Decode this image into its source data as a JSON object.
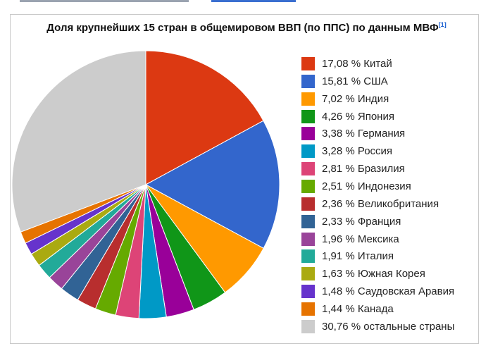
{
  "header_link_colors": [
    "#9aa3b0",
    "#3a6fd0"
  ],
  "chart_data": {
    "type": "pie",
    "title": "Доля крупнейших 15 стран в общемировом ВВП (по ППС) по данным МВФ",
    "title_ref": "[1]",
    "legend_position": "right",
    "start_angle_deg": 0,
    "direction": "clockwise",
    "slices": [
      {
        "label": "17,08 % Китай",
        "name": "Китай",
        "value": 17.08,
        "color": "#dc3912"
      },
      {
        "label": "15,81 % США",
        "name": "США",
        "value": 15.81,
        "color": "#3366cc"
      },
      {
        "label": "7,02 % Индия",
        "name": "Индия",
        "value": 7.02,
        "color": "#ff9900"
      },
      {
        "label": "4,26 % Япония",
        "name": "Япония",
        "value": 4.26,
        "color": "#109618"
      },
      {
        "label": "3,38 % Германия",
        "name": "Германия",
        "value": 3.38,
        "color": "#990099"
      },
      {
        "label": "3,28 % Россия",
        "name": "Россия",
        "value": 3.28,
        "color": "#0099c6"
      },
      {
        "label": "2,81 % Бразилия",
        "name": "Бразилия",
        "value": 2.81,
        "color": "#dd4477"
      },
      {
        "label": "2,51 % Индонезия",
        "name": "Индонезия",
        "value": 2.51,
        "color": "#66aa00"
      },
      {
        "label": "2,36 % Великобритания",
        "name": "Великобритания",
        "value": 2.36,
        "color": "#b82e2e"
      },
      {
        "label": "2,33 % Франция",
        "name": "Франция",
        "value": 2.33,
        "color": "#316395"
      },
      {
        "label": "1,96 % Мексика",
        "name": "Мексика",
        "value": 1.96,
        "color": "#994499"
      },
      {
        "label": "1,91 % Италия",
        "name": "Италия",
        "value": 1.91,
        "color": "#22aa99"
      },
      {
        "label": "1,63 % Южная Корея",
        "name": "Южная Корея",
        "value": 1.63,
        "color": "#aaaa11"
      },
      {
        "label": "1,48 % Саудовская Аравия",
        "name": "Саудовская Аравия",
        "value": 1.48,
        "color": "#6633cc"
      },
      {
        "label": "1,44 % Канада",
        "name": "Канада",
        "value": 1.44,
        "color": "#e67300"
      },
      {
        "label": "30,76 % остальные страны",
        "name": "остальные страны",
        "value": 30.76,
        "color": "#cccccc"
      }
    ]
  }
}
